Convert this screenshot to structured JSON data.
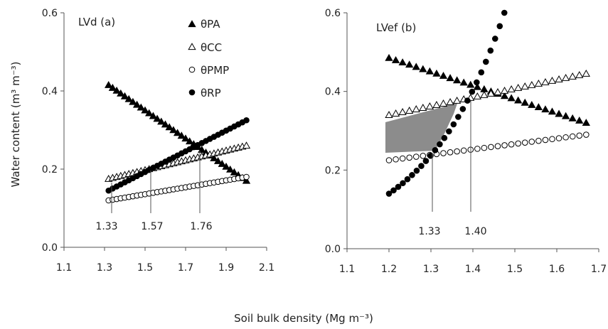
{
  "figure": {
    "ylabel": "Water content (m³ m⁻³)",
    "xlabel": "Soil bulk density (Mg m⁻³)"
  },
  "colors": {
    "ink": "#000000",
    "shade": "#8c8c8c",
    "text": "#222222"
  },
  "chart_data": [
    {
      "type": "scatter",
      "panel_label": "LVd (a)",
      "xlim": [
        1.1,
        2.1
      ],
      "ylim": [
        0.0,
        0.6
      ],
      "xticks": [
        "1.1",
        "1.3",
        "1.5",
        "1.7",
        "1.9",
        "2.1"
      ],
      "yticks": [
        "0.0",
        "0.2",
        "0.4",
        "0.6"
      ],
      "grid": false,
      "legend": "top-right",
      "annotations": [
        "1.33",
        "1.57",
        "1.76"
      ],
      "series": [
        {
          "name": "θPA",
          "marker": "triangle-filled",
          "x_start": 1.32,
          "x_end": 2.0,
          "y_start": 0.415,
          "y_end": 0.17,
          "n": 35
        },
        {
          "name": "θCC",
          "marker": "triangle-open",
          "x_start": 1.32,
          "x_end": 2.0,
          "y_start": 0.175,
          "y_end": 0.26,
          "n": 35
        },
        {
          "name": "θPMP",
          "marker": "circle-open",
          "x_start": 1.32,
          "x_end": 2.0,
          "y_start": 0.12,
          "y_end": 0.18,
          "n": 35
        },
        {
          "name": "θRP",
          "marker": "circle-filled",
          "x_start": 1.32,
          "x_end": 2.0,
          "y_start": 0.145,
          "y_end": 0.325,
          "n": 35
        }
      ]
    },
    {
      "type": "scatter",
      "panel_label": "LVef (b)",
      "xlim": [
        1.1,
        1.7
      ],
      "ylim": [
        0.0,
        0.6
      ],
      "xticks": [
        "1.1",
        "1.2",
        "1.3",
        "1.4",
        "1.5",
        "1.6",
        "1.7"
      ],
      "yticks": [
        "0.0",
        "0.2",
        "0.4",
        "0.6"
      ],
      "grid": false,
      "annotations": [
        "1.33",
        "1.40"
      ],
      "series": [
        {
          "name": "θPA",
          "marker": "triangle-filled",
          "x_start": 1.2,
          "x_end": 1.67,
          "y_start": 0.485,
          "y_end": 0.32,
          "n": 30
        },
        {
          "name": "θCC",
          "marker": "triangle-open",
          "x_start": 1.2,
          "x_end": 1.67,
          "y_start": 0.34,
          "y_end": 0.445,
          "n": 30
        },
        {
          "name": "θPMP",
          "marker": "circle-open",
          "x_start": 1.2,
          "x_end": 1.67,
          "y_start": 0.225,
          "y_end": 0.29,
          "n": 30
        },
        {
          "name": "θRP",
          "marker": "circle-filled",
          "x_start": 1.2,
          "x_end": 1.475,
          "y_start": 0.14,
          "y_end": 0.6,
          "n": 26,
          "curve": "exponential"
        }
      ]
    }
  ]
}
